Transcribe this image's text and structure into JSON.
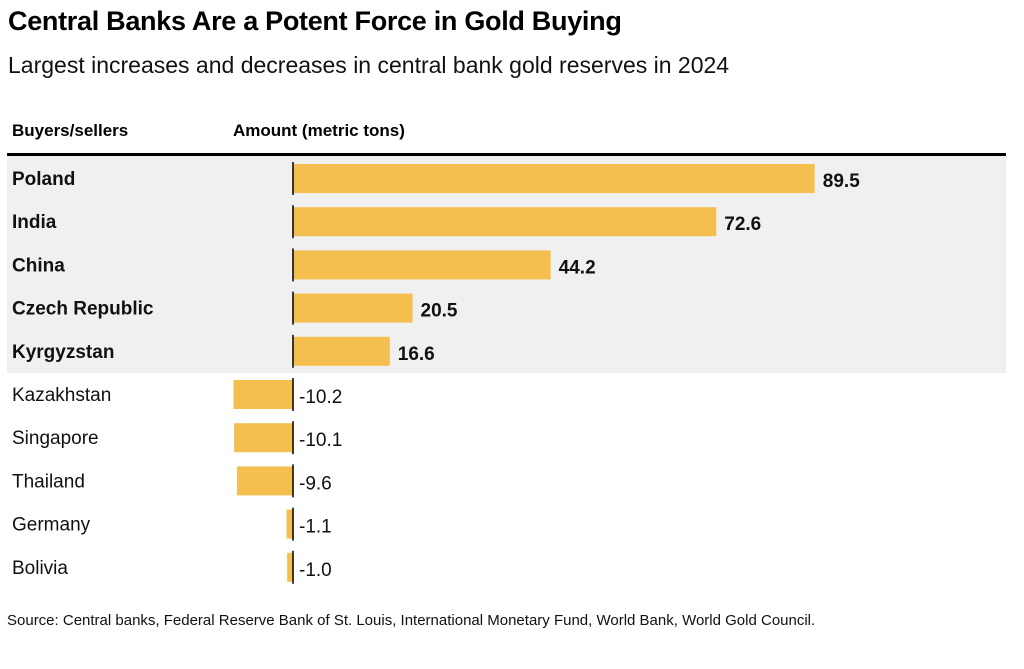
{
  "colors": {
    "bar": "#f4bf4f",
    "band": "#f0f0f0",
    "axis": "#000000"
  },
  "chart_data": {
    "type": "bar",
    "orientation": "horizontal",
    "title": "Central Banks Are a Potent Force in Gold Buying",
    "subtitle": "Largest increases and decreases in central bank gold reserves in 2024",
    "column_headers": [
      "Buyers/sellers",
      "Amount (metric tons)"
    ],
    "categories": [
      "Poland",
      "India",
      "China",
      "Czech Republic",
      "Kyrgyzstan",
      "Kazakhstan",
      "Singapore",
      "Thailand",
      "Germany",
      "Bolivia"
    ],
    "values": [
      89.5,
      72.6,
      44.2,
      20.5,
      16.6,
      -10.2,
      -10.1,
      -9.6,
      -1.1,
      -1.0
    ],
    "value_labels": [
      "89.5",
      "72.6",
      "44.2",
      "20.5",
      "16.6",
      "-10.2",
      "-10.1",
      "-9.6",
      "-1.1",
      "-1.0"
    ],
    "groups": [
      {
        "name": "buyers",
        "count": 5,
        "highlighted": true
      },
      {
        "name": "sellers",
        "count": 5,
        "highlighted": false
      }
    ],
    "xlim": [
      -10.2,
      89.5
    ],
    "grid": false,
    "legend": "none",
    "source": "Source: Central banks, Federal Reserve Bank of St. Louis, International Monetary Fund, World Bank, World Gold Council."
  }
}
